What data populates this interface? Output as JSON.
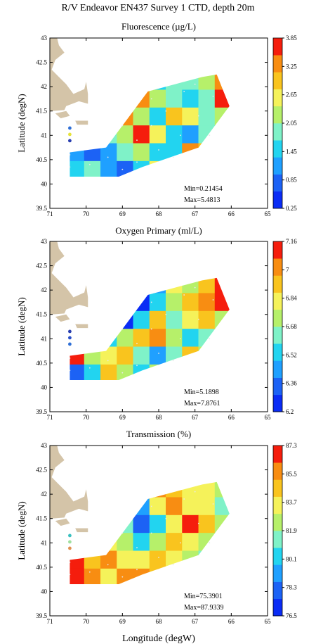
{
  "figure": {
    "title": "R/V Endeavor EN437 Survey 1 CTD, depth 20m",
    "xlabel": "Longitude (degW)"
  },
  "chart_data": [
    {
      "type": "heatmap",
      "title": "Fluorescence (µg/L)",
      "ylabel": "Latitude (degN)",
      "xlabel": "",
      "xlim": [
        71,
        65
      ],
      "ylim": [
        39.5,
        43
      ],
      "x_ticks": [
        "71",
        "70",
        "69",
        "68",
        "67",
        "66",
        "65"
      ],
      "y_ticks": [
        "39.5",
        "40",
        "40.5",
        "41",
        "41.5",
        "42",
        "42.5",
        "43"
      ],
      "colorbar_ticks": [
        "0.25",
        "0.85",
        "1.45",
        "2.05",
        "2.65",
        "3.25",
        "3.85"
      ],
      "colorbar_range": [
        0.25,
        3.85
      ],
      "min_label": "Min=0.21454",
      "max_label": "Max=5.4813",
      "station_dot_colors": [
        "#2f6fd6",
        "#e6e23a",
        "#2a3fb0"
      ],
      "field": [
        [
          0.8,
          1.0,
          1.2,
          1.5,
          1.3,
          1.6,
          2.0,
          1.7,
          2.3,
          3.2
        ],
        [
          0.6,
          1.1,
          1.6,
          2.6,
          3.2,
          2.1,
          1.8,
          1.4,
          2.0,
          3.6
        ],
        [
          1.0,
          1.3,
          2.2,
          3.4,
          2.4,
          1.6,
          2.8,
          2.6,
          1.7,
          2.4
        ],
        [
          0.9,
          1.4,
          1.8,
          2.1,
          3.6,
          2.7,
          1.5,
          1.3,
          1.9,
          2.0
        ],
        [
          1.2,
          0.9,
          1.3,
          1.7,
          2.2,
          1.4,
          1.6,
          3.3,
          2.9,
          1.5
        ],
        [
          1.6,
          2.0,
          1.1,
          0.9,
          1.5,
          2.5,
          3.1,
          2.2,
          1.4,
          1.1
        ]
      ]
    },
    {
      "type": "heatmap",
      "title": "Oxygen Primary (ml/L)",
      "ylabel": "Latitude (degN)",
      "xlabel": "",
      "xlim": [
        71,
        65
      ],
      "ylim": [
        39.5,
        43
      ],
      "x_ticks": [
        "71",
        "70",
        "69",
        "68",
        "67",
        "66",
        "65"
      ],
      "y_ticks": [
        "39.5",
        "40",
        "40.5",
        "41",
        "41.5",
        "42",
        "42.5",
        "43"
      ],
      "colorbar_ticks": [
        "6.2",
        "6.36",
        "6.52",
        "6.68",
        "6.84",
        "7",
        "7.16"
      ],
      "colorbar_range": [
        6.2,
        7.16
      ],
      "min_label": "Min=5.1898",
      "max_label": "Max=7.8761",
      "station_dot_colors": [
        "#2a3fb0",
        "#2a50c8",
        "#2f6fd6"
      ],
      "field": [
        [
          6.3,
          6.5,
          6.7,
          6.9,
          6.6,
          6.4,
          6.8,
          6.7,
          6.9,
          7.1
        ],
        [
          6.2,
          6.4,
          6.6,
          6.3,
          6.2,
          6.5,
          6.7,
          6.9,
          7.0,
          7.15
        ],
        [
          6.6,
          6.8,
          6.4,
          6.25,
          6.5,
          6.9,
          6.6,
          6.8,
          6.95,
          6.7
        ],
        [
          6.9,
          6.6,
          6.5,
          6.7,
          6.9,
          7.05,
          6.7,
          6.5,
          6.6,
          6.8
        ],
        [
          7.1,
          6.7,
          6.8,
          6.9,
          6.6,
          6.4,
          6.6,
          6.9,
          6.7,
          6.5
        ],
        [
          6.3,
          6.5,
          6.9,
          6.7,
          6.5,
          6.7,
          6.9,
          6.6,
          6.5,
          6.7
        ]
      ]
    },
    {
      "type": "heatmap",
      "title": "Transmission (%)",
      "ylabel": "Latitude (degN)",
      "xlabel": "Longitude (degW)",
      "xlim": [
        71,
        65
      ],
      "ylim": [
        39.5,
        43
      ],
      "x_ticks": [
        "71",
        "70",
        "69",
        "68",
        "67",
        "66",
        "65"
      ],
      "y_ticks": [
        "39.5",
        "40",
        "40.5",
        "41",
        "41.5",
        "42",
        "42.5",
        "43"
      ],
      "colorbar_ticks": [
        "76.5",
        "78.3",
        "80.1",
        "81.9",
        "83.7",
        "85.5",
        "87.3"
      ],
      "colorbar_range": [
        76.5,
        87.3
      ],
      "min_label": "Min=75.3901",
      "max_label": "Max=87.9339",
      "station_dot_colors": [
        "#3ac0c0",
        "#a0e0a0",
        "#e09050"
      ],
      "field": [
        [
          84.5,
          85.5,
          84.0,
          82.5,
          84.5,
          86.0,
          85.0,
          84.0,
          83.0,
          82.0
        ],
        [
          85.0,
          84.0,
          82.0,
          80.5,
          79.5,
          83.0,
          85.5,
          84.0,
          83.0,
          81.5
        ],
        [
          86.0,
          84.5,
          83.0,
          81.0,
          78.0,
          80.5,
          84.0,
          86.5,
          84.5,
          82.5
        ],
        [
          85.5,
          85.0,
          84.0,
          82.5,
          80.0,
          82.5,
          85.0,
          84.0,
          82.0,
          80.5
        ],
        [
          86.5,
          84.5,
          85.5,
          84.0,
          83.0,
          85.0,
          83.5,
          82.0,
          81.0,
          82.5
        ],
        [
          87.0,
          85.5,
          84.0,
          85.5,
          86.0,
          84.5,
          83.0,
          84.5,
          83.5,
          81.5
        ]
      ]
    }
  ]
}
